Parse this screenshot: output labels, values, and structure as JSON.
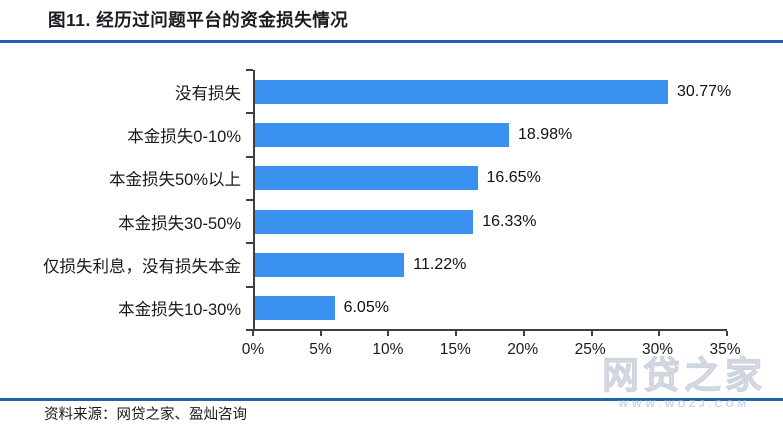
{
  "header": {
    "title": "图11. 经历过问题平台的资金损失情况"
  },
  "footer": {
    "source": "资料来源：网贷之家、盈灿咨询"
  },
  "watermark": {
    "text": "网贷之家",
    "url": "WWW.WDZJ.COM"
  },
  "colors": {
    "bar": "#3A91F0",
    "divider": "#2264A8",
    "axis": "#404040",
    "text": "#1A1A1A"
  },
  "chart_data": {
    "type": "bar",
    "orientation": "horizontal",
    "title": "图11. 经历过问题平台的资金损失情况",
    "categories": [
      "没有损失",
      "本金损失0-10%",
      "本金损失50%以上",
      "本金损失30-50%",
      "仅损失利息，没有损失本金",
      "本金损失10-30%"
    ],
    "values": [
      30.77,
      18.98,
      16.65,
      16.33,
      11.22,
      6.05
    ],
    "value_labels": [
      "30.77%",
      "18.98%",
      "16.65%",
      "16.33%",
      "11.22%",
      "6.05%"
    ],
    "xlim": [
      0,
      35
    ],
    "x_ticks": [
      "0%",
      "5%",
      "10%",
      "15%",
      "20%",
      "25%",
      "30%",
      "35%"
    ],
    "xlabel": "",
    "ylabel": "",
    "grid": false,
    "legend": false,
    "data_labels": true
  }
}
